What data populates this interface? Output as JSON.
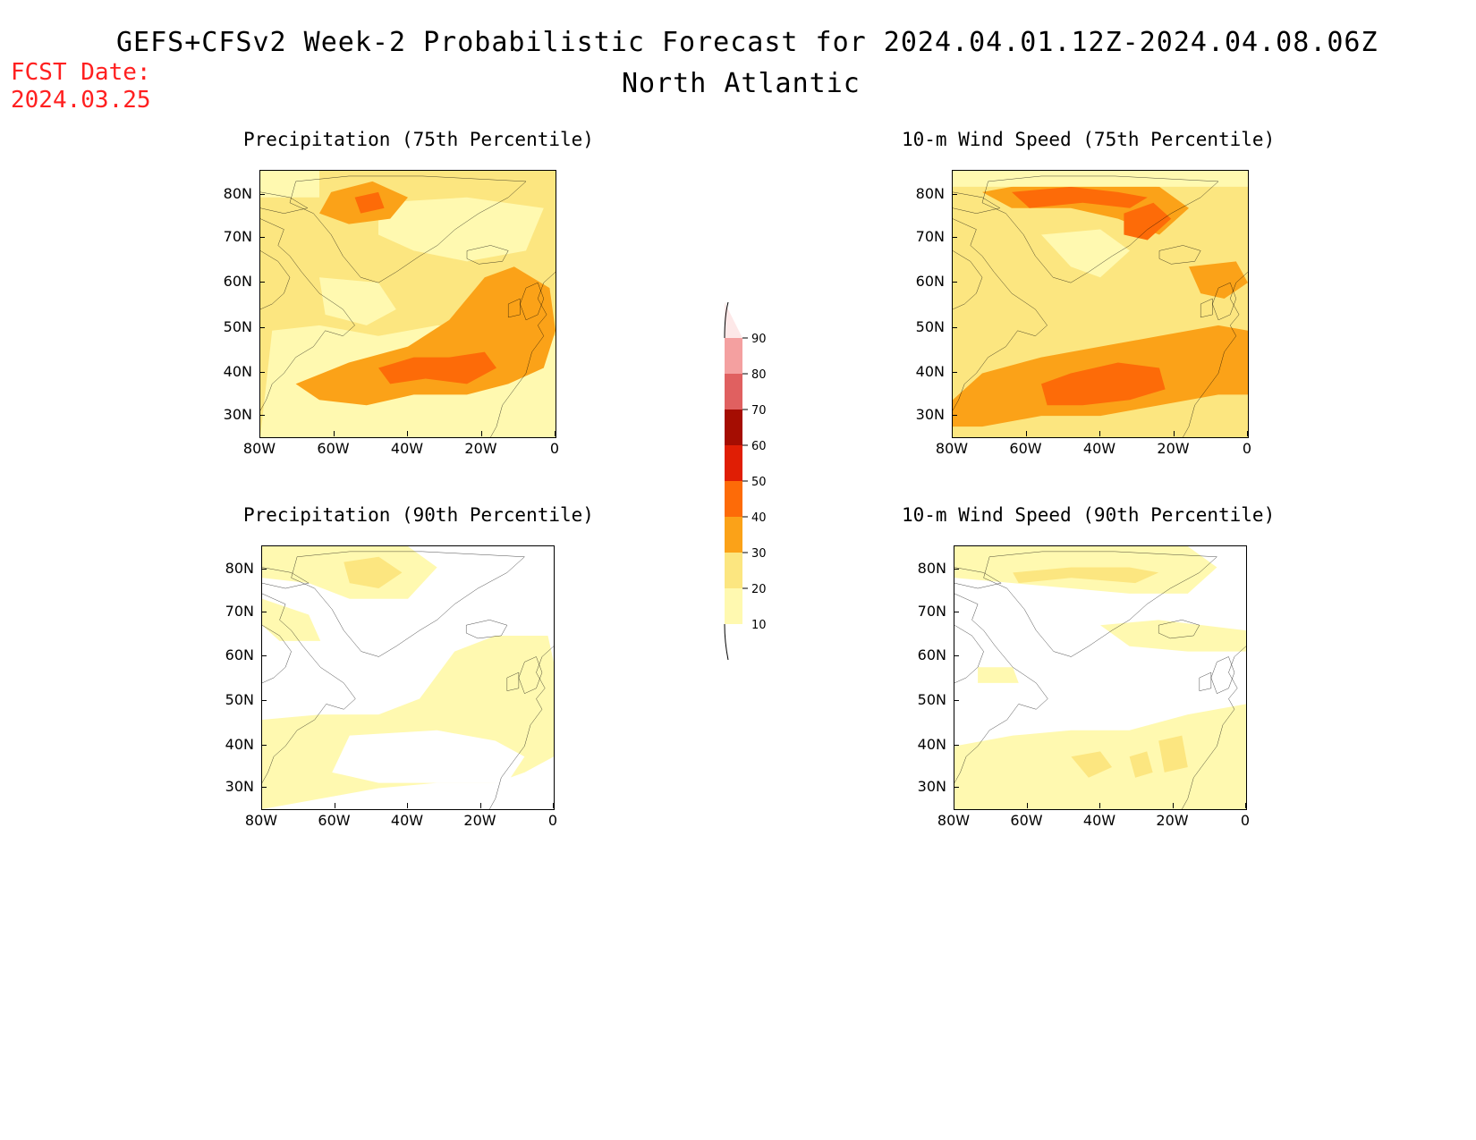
{
  "header": {
    "title": "GEFS+CFSv2 Week-2 Probabilistic Forecast for 2024.04.01.12Z-2024.04.08.06Z",
    "subtitle": "North Atlantic",
    "fcst_label": "FCST Date:",
    "fcst_date": "2024.03.25"
  },
  "colors": {
    "levels": [
      "#fff9b0",
      "#fce680",
      "#fba218",
      "#fd6b08",
      "#e01e05",
      "#a50d02",
      "#e06060",
      "#f4a0a0",
      "#fde8e8"
    ],
    "coast": "#000000"
  },
  "colorbar": {
    "labels": [
      "90",
      "80",
      "70",
      "60",
      "50",
      "40",
      "30",
      "20",
      "10"
    ]
  },
  "axes": {
    "lat_labels": [
      "80N",
      "70N",
      "60N",
      "50N",
      "40N",
      "30N"
    ],
    "lon_labels": [
      "80W",
      "60W",
      "40W",
      "20W",
      "0"
    ]
  },
  "panels": [
    {
      "id": "precip75",
      "title": "Precipitation (75th Percentile)"
    },
    {
      "id": "wind75",
      "title": "10-m Wind Speed (75th Percentile)"
    },
    {
      "id": "precip90",
      "title": "Precipitation (90th Percentile)"
    },
    {
      "id": "wind90",
      "title": "10-m Wind Speed (90th Percentile)"
    }
  ]
}
